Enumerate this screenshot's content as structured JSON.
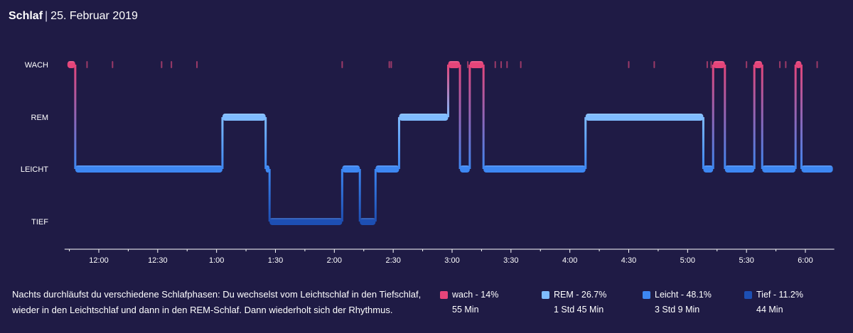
{
  "header": {
    "title": "Schlaf",
    "date": "25. Februar 2019"
  },
  "description": "Nachts durchläufst du verschiedene Schlafphasen: Du wechselst vom Leichtschlaf in den Tiefschlaf, wieder in den Leichtschlaf und dann in den REM-Schlaf. Dann wiederholt sich der Rhythmus.",
  "legend": [
    {
      "label": "wach - 14%",
      "duration": "55 Min",
      "color": "#e5457a"
    },
    {
      "label": "REM - 26.7%",
      "duration": "1 Std 45 Min",
      "color": "#7fbcff"
    },
    {
      "label": "Leicht - 48.1%",
      "duration": "3 Std 9 Min",
      "color": "#3d87f2"
    },
    {
      "label": "Tief - 11.2%",
      "duration": "44 Min",
      "color": "#1d4fb3"
    }
  ],
  "chart_data": {
    "type": "hypnogram",
    "stages": [
      "WACH",
      "REM",
      "LEICHT",
      "TIEF"
    ],
    "stage_colors": {
      "WACH": "#e5457a",
      "REM": "#7fbcff",
      "LEICHT": "#3d87f2",
      "TIEF": "#1d4fb3"
    },
    "x_ticks": [
      "12:00",
      "12:30",
      "1:00",
      "1:30",
      "2:00",
      "2:30",
      "3:00",
      "3:30",
      "4:00",
      "4:30",
      "5:00",
      "5:30",
      "6:00"
    ],
    "x_range": [
      "23:44",
      "6:14"
    ],
    "segments": [
      {
        "stage": "WACH",
        "start": "23:44",
        "end": "23:48"
      },
      {
        "stage": "LEICHT",
        "start": "23:48",
        "end": "1:03"
      },
      {
        "stage": "REM",
        "start": "1:03",
        "end": "1:25"
      },
      {
        "stage": "LEICHT",
        "start": "1:25",
        "end": "1:27"
      },
      {
        "stage": "TIEF",
        "start": "1:27",
        "end": "2:04"
      },
      {
        "stage": "LEICHT",
        "start": "2:04",
        "end": "2:13"
      },
      {
        "stage": "TIEF",
        "start": "2:13",
        "end": "2:21"
      },
      {
        "stage": "LEICHT",
        "start": "2:21",
        "end": "2:33"
      },
      {
        "stage": "REM",
        "start": "2:33",
        "end": "2:58"
      },
      {
        "stage": "WACH",
        "start": "2:58",
        "end": "3:04"
      },
      {
        "stage": "LEICHT",
        "start": "3:04",
        "end": "3:09"
      },
      {
        "stage": "WACH",
        "start": "3:09",
        "end": "3:16"
      },
      {
        "stage": "LEICHT",
        "start": "3:16",
        "end": "4:08"
      },
      {
        "stage": "REM",
        "start": "4:08",
        "end": "5:08"
      },
      {
        "stage": "LEICHT",
        "start": "5:08",
        "end": "5:13"
      },
      {
        "stage": "WACH",
        "start": "5:13",
        "end": "5:19"
      },
      {
        "stage": "LEICHT",
        "start": "5:19",
        "end": "5:34"
      },
      {
        "stage": "WACH",
        "start": "5:34",
        "end": "5:38"
      },
      {
        "stage": "LEICHT",
        "start": "5:38",
        "end": "5:55"
      },
      {
        "stage": "WACH",
        "start": "5:55",
        "end": "5:58"
      },
      {
        "stage": "LEICHT",
        "start": "5:58",
        "end": "6:14"
      }
    ],
    "brief_wake_marks": [
      "23:54",
      "0:07",
      "0:32",
      "0:37",
      "0:50",
      "2:04",
      "2:28",
      "2:29",
      "3:08",
      "3:22",
      "3:25",
      "3:28",
      "3:35",
      "4:30",
      "4:43",
      "5:10",
      "5:12",
      "5:30",
      "5:47",
      "5:50",
      "6:06"
    ],
    "grid": false
  }
}
